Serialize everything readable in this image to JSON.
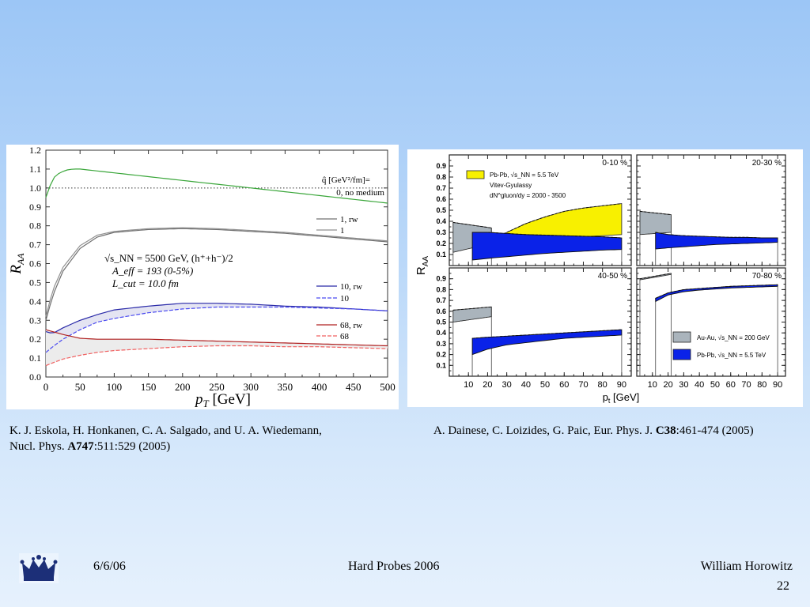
{
  "footer": {
    "date": "6/6/06",
    "conference": "Hard Probes 2006",
    "author": "William Horowitz",
    "page": "22"
  },
  "citations": {
    "left_line1": "K. J. Eskola, H. Honkanen, C. A. Salgado, and U. A. Wiedemann,",
    "left_line2_pre": "Nucl. Phys. ",
    "left_line2_bold": "A747",
    "left_line2_post": ":511:529 (2005)",
    "right_pre": "A. Dainese, C. Loizides, G. Paic, Eur. Phys. J. ",
    "right_bold": "C38",
    "right_post": ":461-474 (2005)"
  },
  "chart_data": [
    {
      "type": "line",
      "xlabel": "p_T [GeV]",
      "ylabel": "R_AA",
      "xlim": [
        0,
        500
      ],
      "ylim": [
        0,
        1.2
      ],
      "x_ticks": [
        0,
        50,
        100,
        150,
        200,
        250,
        300,
        350,
        400,
        450,
        500
      ],
      "y_ticks": [
        0.0,
        0.1,
        0.2,
        0.3,
        0.4,
        0.5,
        0.6,
        0.7,
        0.8,
        0.9,
        1.0,
        1.1,
        1.2
      ],
      "legend_header": "q̂ [GeV²/fm]=",
      "annotation": [
        "√s_NN = 5500 GeV, (h⁺+h⁻)/2",
        "A_eff = 193 (0-5%)",
        "L_cut = 10.0 fm"
      ],
      "reference_line": 1.0,
      "series": [
        {
          "name": "0, no medium",
          "color": "#3aa63a",
          "x": [
            0,
            5,
            10,
            20,
            30,
            40,
            50,
            75,
            100,
            150,
            200,
            250,
            300,
            350,
            400,
            450,
            500
          ],
          "values": [
            0.95,
            1.0,
            1.05,
            1.08,
            1.095,
            1.1,
            1.1,
            1.09,
            1.08,
            1.06,
            1.04,
            1.02,
            1.0,
            0.98,
            0.96,
            0.94,
            0.92
          ]
        },
        {
          "name": "1, rw",
          "color": "#707070",
          "x": [
            0,
            10,
            25,
            50,
            75,
            100,
            150,
            200,
            250,
            300,
            350,
            400,
            450,
            500
          ],
          "values": [
            0.3,
            0.43,
            0.56,
            0.68,
            0.74,
            0.765,
            0.78,
            0.785,
            0.78,
            0.77,
            0.76,
            0.745,
            0.73,
            0.715
          ]
        },
        {
          "name": "1",
          "color": "#909090",
          "x": [
            0,
            10,
            25,
            50,
            75,
            100,
            150,
            200,
            250,
            300,
            350,
            400,
            450,
            500
          ],
          "values": [
            0.32,
            0.46,
            0.58,
            0.695,
            0.75,
            0.77,
            0.785,
            0.79,
            0.785,
            0.775,
            0.765,
            0.75,
            0.735,
            0.72
          ]
        },
        {
          "name": "10, rw",
          "color": "#2a2aa8",
          "x": [
            0,
            10,
            25,
            50,
            75,
            100,
            150,
            200,
            250,
            300,
            350,
            400,
            450,
            500
          ],
          "values": [
            0.24,
            0.23,
            0.26,
            0.3,
            0.33,
            0.355,
            0.375,
            0.39,
            0.39,
            0.385,
            0.375,
            0.37,
            0.36,
            0.35
          ]
        },
        {
          "name": "10",
          "color": "#4a4af0",
          "x": [
            0,
            10,
            25,
            50,
            75,
            100,
            150,
            200,
            250,
            300,
            350,
            400,
            450,
            500
          ],
          "values": [
            0.13,
            0.16,
            0.2,
            0.25,
            0.29,
            0.31,
            0.34,
            0.36,
            0.37,
            0.37,
            0.37,
            0.365,
            0.36,
            0.35
          ]
        },
        {
          "name": "68, rw",
          "color": "#b02020",
          "x": [
            0,
            10,
            25,
            50,
            75,
            100,
            150,
            200,
            250,
            300,
            350,
            400,
            450,
            500
          ],
          "values": [
            0.25,
            0.24,
            0.225,
            0.205,
            0.2,
            0.2,
            0.2,
            0.195,
            0.19,
            0.185,
            0.18,
            0.175,
            0.17,
            0.165
          ]
        },
        {
          "name": "68",
          "color": "#f06060",
          "x": [
            0,
            10,
            25,
            50,
            75,
            100,
            150,
            200,
            250,
            300,
            350,
            400,
            450,
            500
          ],
          "values": [
            0.06,
            0.075,
            0.095,
            0.115,
            0.13,
            0.14,
            0.15,
            0.16,
            0.165,
            0.165,
            0.16,
            0.16,
            0.155,
            0.15
          ]
        }
      ]
    },
    {
      "type": "area",
      "ylabel": "R_AA",
      "xlabel": "p_t [GeV]",
      "xlim": [
        0,
        95
      ],
      "ylim": [
        0,
        1.0
      ],
      "x_ticks": [
        10,
        20,
        30,
        40,
        50,
        60,
        70,
        80,
        90
      ],
      "y_ticks": [
        0.1,
        0.2,
        0.3,
        0.4,
        0.5,
        0.6,
        0.7,
        0.8,
        0.9
      ],
      "legend": [
        {
          "label": "Pb-Pb, √s_NN = 5.5 TeV",
          "color": "#f8f000"
        },
        {
          "label": "Vitev-Gyulassy",
          "color": ""
        },
        {
          "label": "dN^gluon/dy = 2000 - 3500",
          "color": ""
        },
        {
          "label": "Au-Au, √s_NN = 200 GeV",
          "color": "#aab4bc"
        },
        {
          "label": "Pb-Pb, √s_NN = 5.5 TeV",
          "color": "#0a22e8"
        }
      ],
      "panels": [
        {
          "name": "0-10 %",
          "rhic_band": {
            "x": [
              2,
              22
            ],
            "upper": [
              0.39,
              0.34
            ],
            "lower": [
              0.12,
              0.2
            ]
          },
          "lhc_band": {
            "x": [
              12,
              20,
              30,
              40,
              50,
              60,
              70,
              80,
              90
            ],
            "upper": [
              0.3,
              0.3,
              0.29,
              0.28,
              0.275,
              0.27,
              0.265,
              0.26,
              0.25
            ],
            "lower": [
              0.05,
              0.065,
              0.08,
              0.095,
              0.11,
              0.12,
              0.13,
              0.14,
              0.145
            ]
          },
          "yellow_band": {
            "x": [
              12,
              20,
              30,
              40,
              50,
              60,
              70,
              80,
              90
            ],
            "upper": [
              0.07,
              0.2,
              0.3,
              0.38,
              0.44,
              0.49,
              0.52,
              0.54,
              0.56
            ],
            "lower": [
              0.07,
              0.11,
              0.155,
              0.19,
              0.22,
              0.245,
              0.26,
              0.27,
              0.28
            ]
          }
        },
        {
          "name": "20-30 %",
          "rhic_band": {
            "x": [
              2,
              22
            ],
            "upper": [
              0.49,
              0.46
            ],
            "lower": [
              0.28,
              0.3
            ]
          },
          "lhc_band": {
            "x": [
              12,
              20,
              30,
              40,
              50,
              60,
              70,
              80,
              90
            ],
            "upper": [
              0.3,
              0.28,
              0.27,
              0.265,
              0.26,
              0.255,
              0.255,
              0.25,
              0.25
            ],
            "lower": [
              0.15,
              0.16,
              0.17,
              0.18,
              0.19,
              0.195,
              0.2,
              0.205,
              0.21
            ]
          }
        },
        {
          "name": "40-50 %",
          "rhic_band": {
            "x": [
              2,
              22
            ],
            "upper": [
              0.61,
              0.64
            ],
            "lower": [
              0.5,
              0.55
            ]
          },
          "lhc_band": {
            "x": [
              12,
              20,
              30,
              40,
              50,
              60,
              70,
              80,
              90
            ],
            "upper": [
              0.35,
              0.36,
              0.37,
              0.38,
              0.39,
              0.4,
              0.41,
              0.42,
              0.43
            ],
            "lower": [
              0.2,
              0.25,
              0.29,
              0.31,
              0.33,
              0.35,
              0.36,
              0.37,
              0.38
            ]
          }
        },
        {
          "name": "70-80 %",
          "rhic_band": {
            "x": [
              2,
              22
            ],
            "upper": [
              0.9,
              0.95
            ],
            "lower": [
              0.89,
              0.94
            ]
          },
          "lhc_band": {
            "x": [
              12,
              20,
              30,
              40,
              50,
              60,
              70,
              80,
              90
            ],
            "upper": [
              0.72,
              0.77,
              0.8,
              0.81,
              0.82,
              0.83,
              0.835,
              0.84,
              0.845
            ],
            "lower": [
              0.69,
              0.75,
              0.78,
              0.795,
              0.805,
              0.815,
              0.82,
              0.825,
              0.83
            ]
          }
        }
      ]
    }
  ]
}
